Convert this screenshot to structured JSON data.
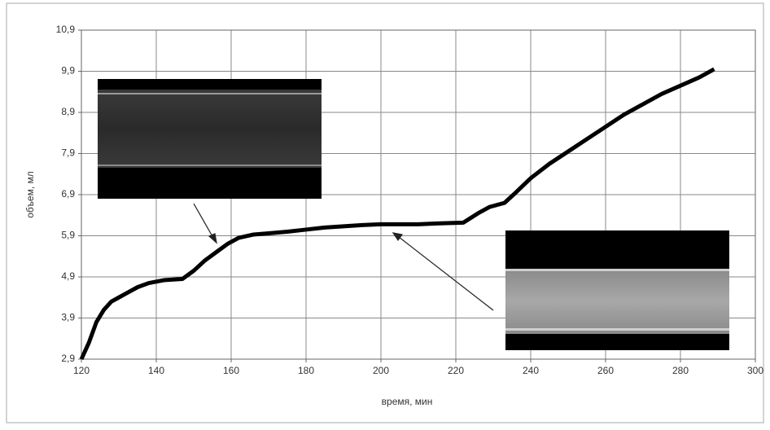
{
  "chart_data": {
    "type": "line",
    "xlabel": "время, мин",
    "ylabel": "объем, мл",
    "x": [
      120,
      122,
      124,
      126,
      128,
      130,
      132,
      135,
      138,
      142,
      147,
      150,
      153,
      156,
      159,
      162,
      166,
      170,
      175,
      180,
      185,
      190,
      195,
      200,
      210,
      215,
      222,
      226,
      229,
      233,
      236,
      240,
      245,
      250,
      255,
      260,
      265,
      270,
      275,
      280,
      285,
      289
    ],
    "series": [
      {
        "color": "#000000",
        "values": [
          2.9,
          3.3,
          3.8,
          4.1,
          4.3,
          4.4,
          4.5,
          4.65,
          4.75,
          4.82,
          4.85,
          5.05,
          5.3,
          5.5,
          5.7,
          5.85,
          5.93,
          5.96,
          6.0,
          6.05,
          6.1,
          6.13,
          6.16,
          6.18,
          6.18,
          6.2,
          6.22,
          6.45,
          6.6,
          6.7,
          6.95,
          7.3,
          7.65,
          7.95,
          8.25,
          8.55,
          8.85,
          9.1,
          9.35,
          9.55,
          9.75,
          9.95
        ]
      }
    ],
    "xlim": [
      120,
      300
    ],
    "ylim": [
      2.9,
      10.9
    ],
    "xticks": [
      120,
      140,
      160,
      180,
      200,
      220,
      240,
      260,
      280,
      300
    ],
    "yticks": [
      {
        "value": 2.9,
        "label": "2,9"
      },
      {
        "value": 3.9,
        "label": "3,9"
      },
      {
        "value": 4.9,
        "label": "4,9"
      },
      {
        "value": 5.9,
        "label": "5,9"
      },
      {
        "value": 6.9,
        "label": "6,9"
      },
      {
        "value": 7.9,
        "label": "7,9"
      },
      {
        "value": 8.9,
        "label": "8,9"
      },
      {
        "value": 9.9,
        "label": "9,9"
      },
      {
        "value": 10.9,
        "label": "10,9"
      }
    ],
    "grid": true
  }
}
